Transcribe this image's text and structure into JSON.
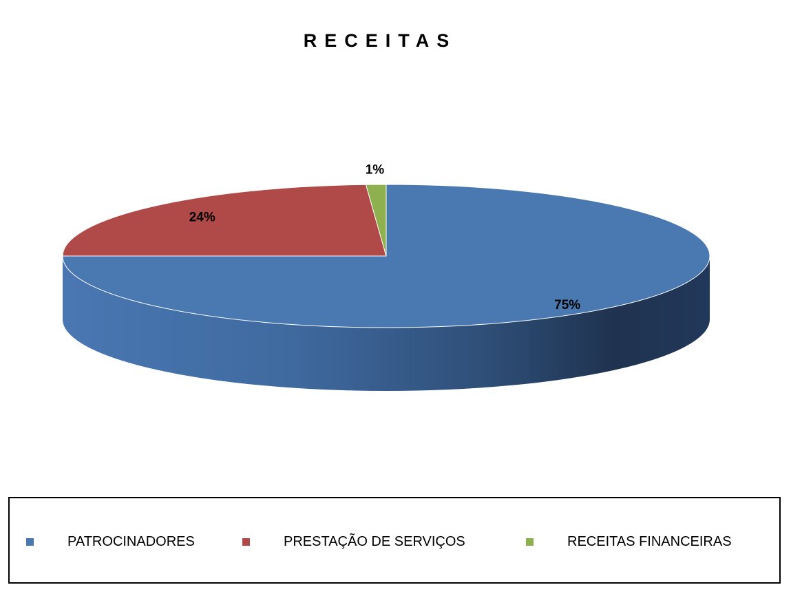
{
  "chart_data": {
    "type": "pie",
    "title": "RECEITAS",
    "categories": [
      "PATROCINADORES",
      "PRESTAÇÃO DE SERVIÇOS",
      "RECEITAS FINANCEIRAS"
    ],
    "values": [
      75,
      24,
      1
    ],
    "labels": [
      "75%",
      "24%",
      "1%"
    ],
    "colors": [
      "#4a78b0",
      "#b04a48",
      "#8fb04e"
    ],
    "legend_position": "bottom",
    "three_d": true
  }
}
